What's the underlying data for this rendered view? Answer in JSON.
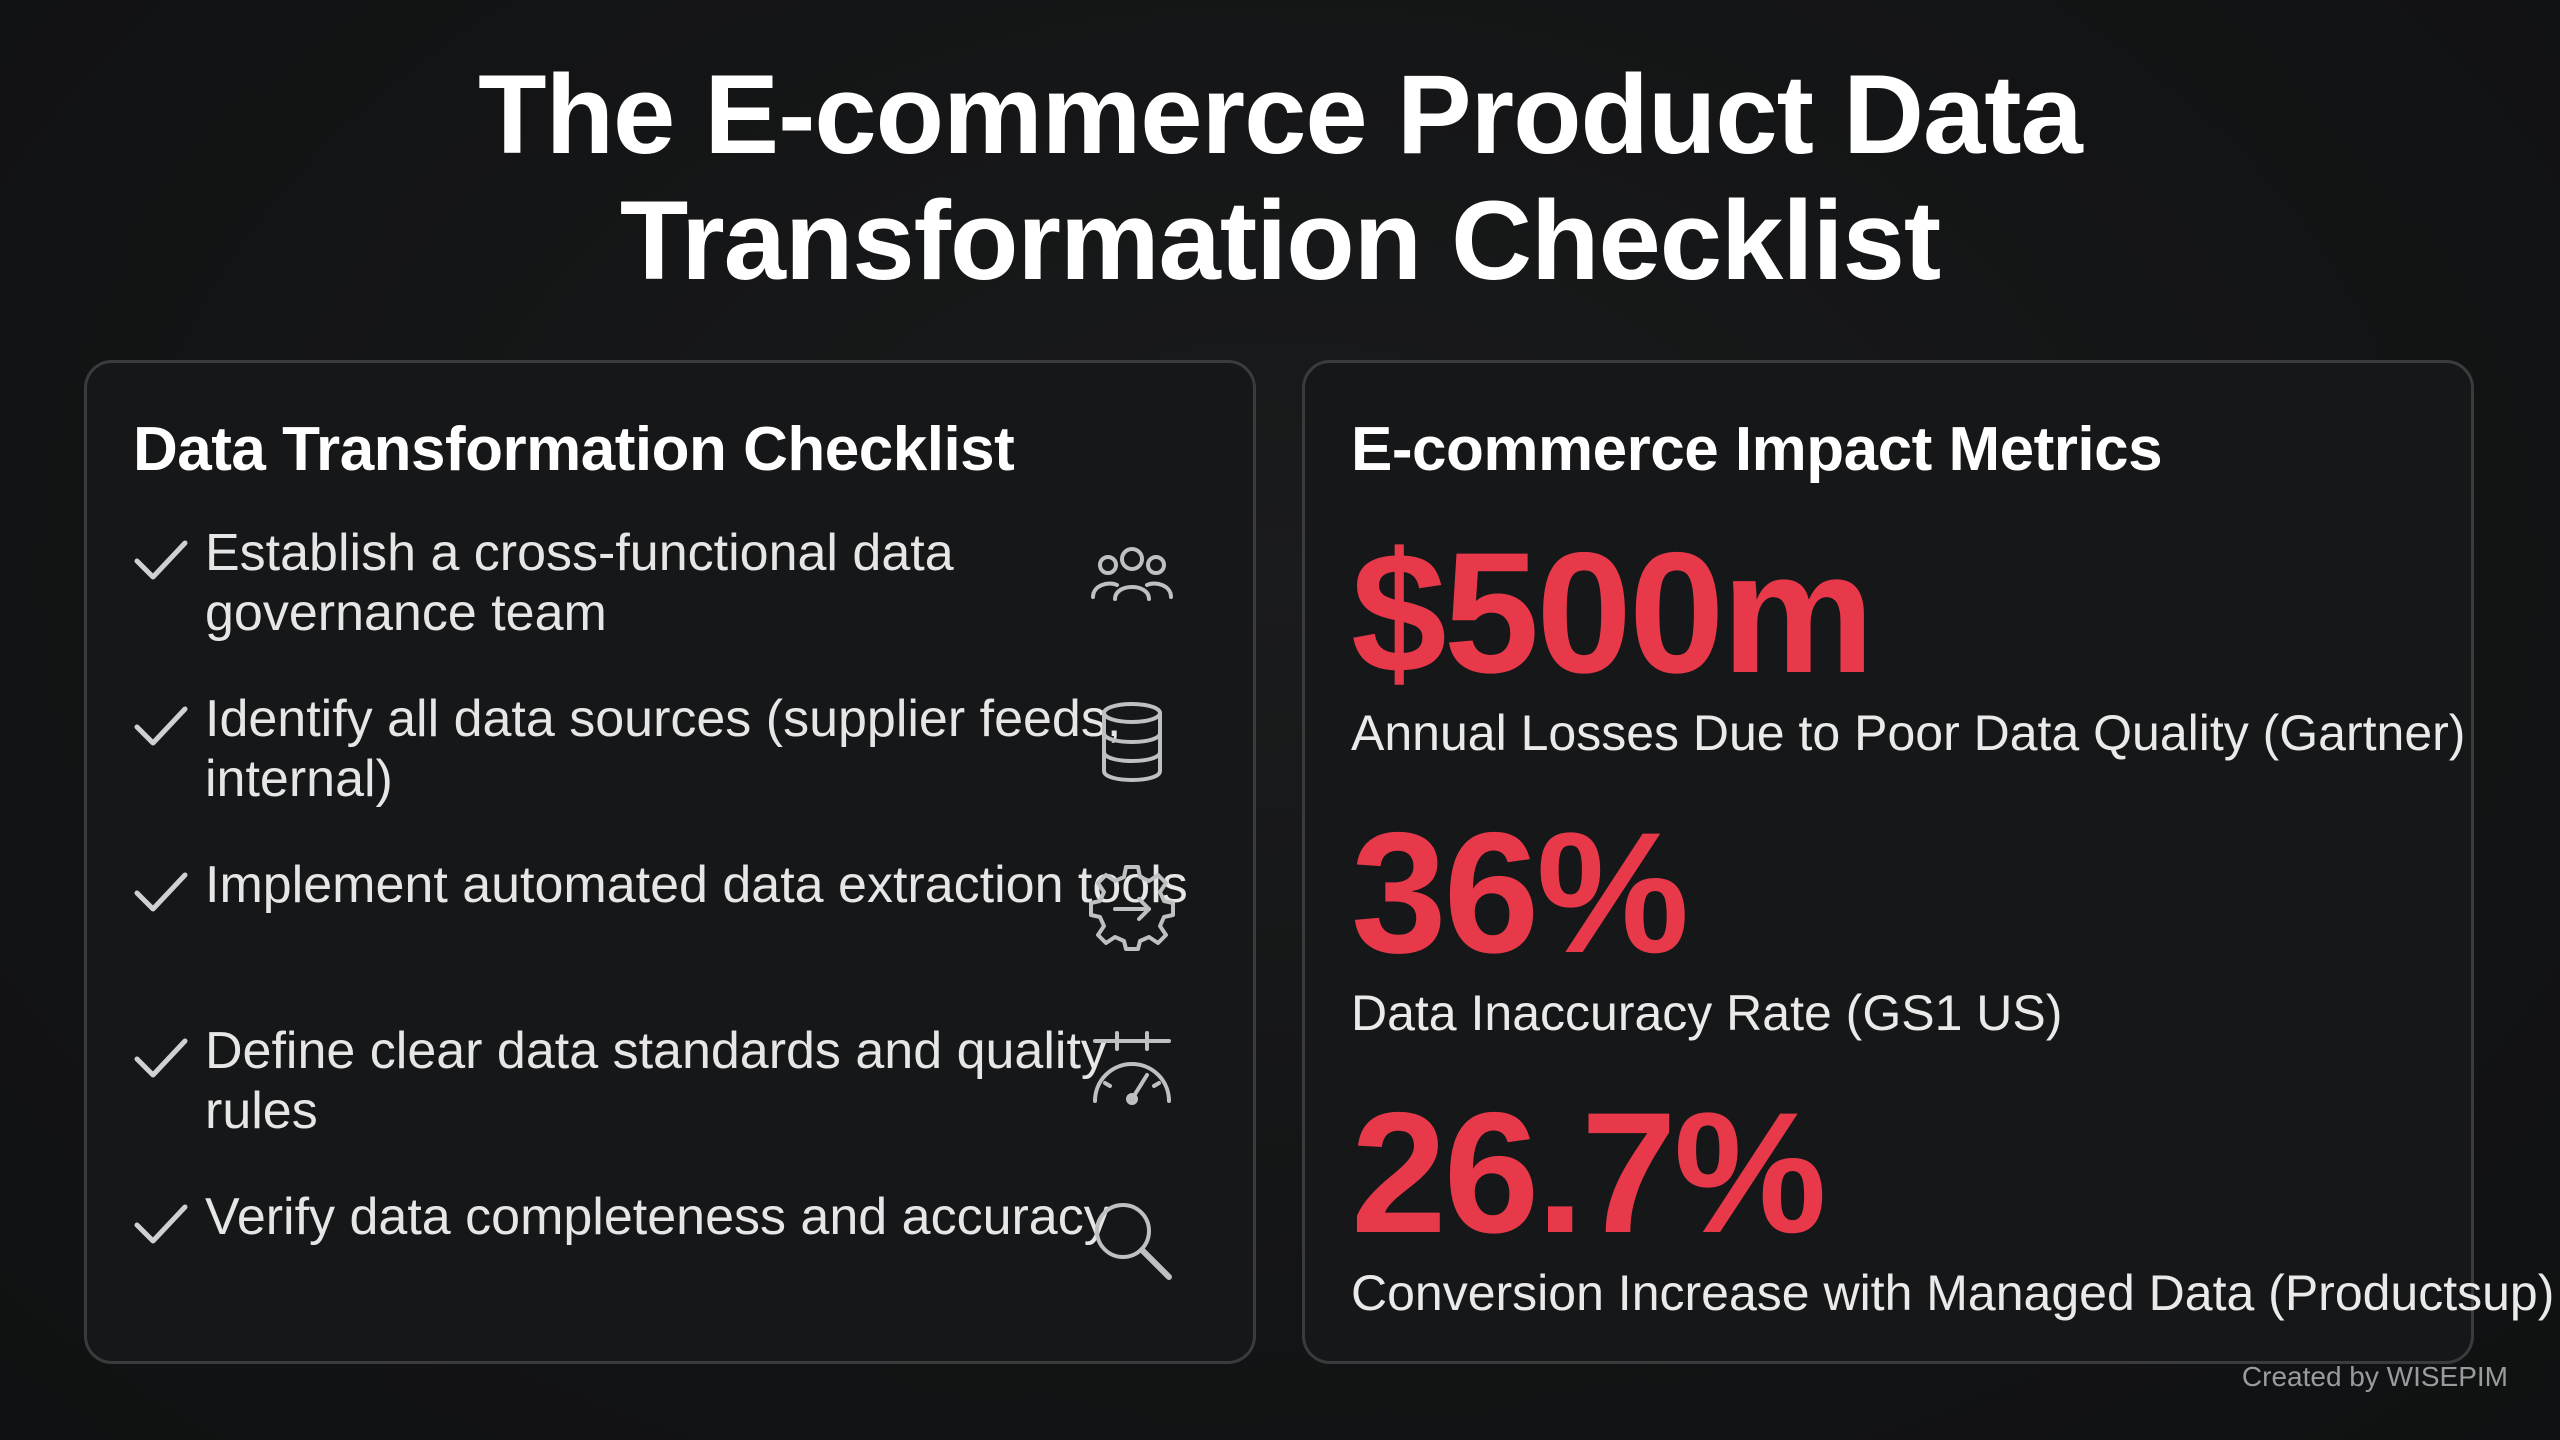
{
  "title": {
    "line1": "The E-commerce Product Data",
    "line2": "Transformation Checklist"
  },
  "colors": {
    "background": "#131415",
    "accent": "#e8394b",
    "panel_border": "#3a3b3d",
    "text": "#ffffff"
  },
  "checklist_panel": {
    "heading": "Data Transformation Checklist",
    "items": [
      {
        "text": "Establish a cross-functional data governance team",
        "icon": "team-icon"
      },
      {
        "text": "Identify all data sources (supplier feeds, internal)",
        "icon": "database-icon"
      },
      {
        "text": "Implement automated data extraction tools",
        "icon": "gear-arrow-icon"
      },
      {
        "text": "Define clear data standards and quality rules",
        "icon": "gauge-icon"
      },
      {
        "text": "Verify data completeness and accuracy",
        "icon": "search-icon"
      }
    ]
  },
  "metrics_panel": {
    "heading": "E-commerce Impact Metrics",
    "metrics": [
      {
        "value": "$500m",
        "label": "Annual Losses Due to Poor Data Quality (Gartner)"
      },
      {
        "value": "36%",
        "label": "Data Inaccuracy Rate (GS1 US)"
      },
      {
        "value": "26.7%",
        "label": "Conversion Increase with Managed Data (Productsup)"
      }
    ]
  },
  "footer": {
    "credit": "Created by WISEPIM"
  }
}
